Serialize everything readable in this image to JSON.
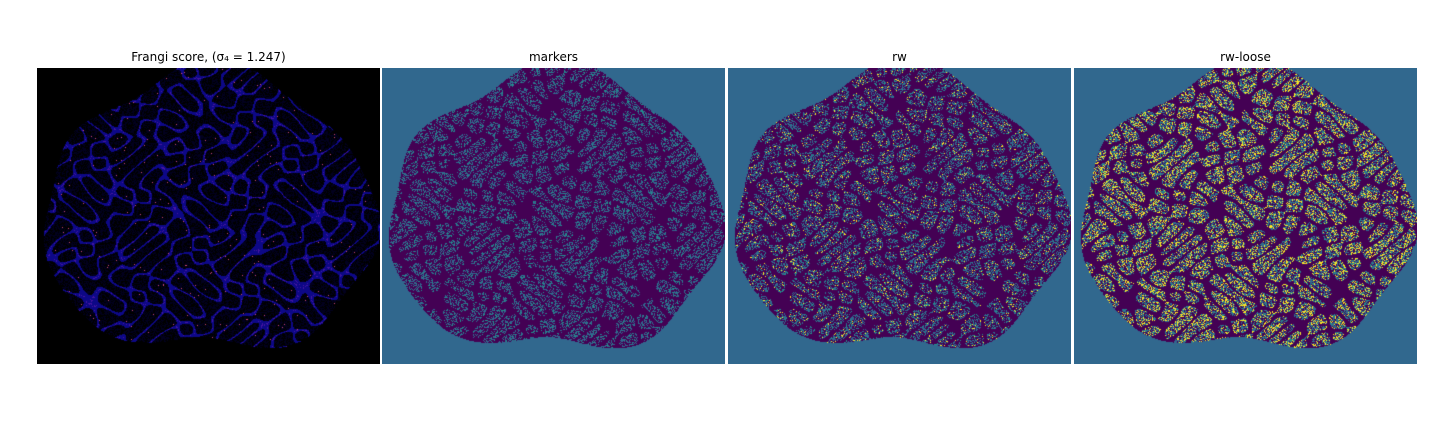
{
  "figure": {
    "panels": [
      {
        "title": "Frangi score, (σ₄ = 1.247)",
        "colormap": "plasma",
        "background_color": "#000000"
      },
      {
        "title": "markers",
        "colormap": "viridis",
        "background_color": "#31688e"
      },
      {
        "title": "rw",
        "colormap": "viridis",
        "background_color": "#31688e"
      },
      {
        "title": "rw-loose",
        "colormap": "viridis",
        "background_color": "#31688e"
      }
    ],
    "colors": {
      "dark_purple": "#440154",
      "teal": "#21918c",
      "yellow": "#fde725",
      "steel_blue": "#31688e",
      "plasma_blue": "#0d0887",
      "plasma_magenta": "#cc4778"
    }
  }
}
